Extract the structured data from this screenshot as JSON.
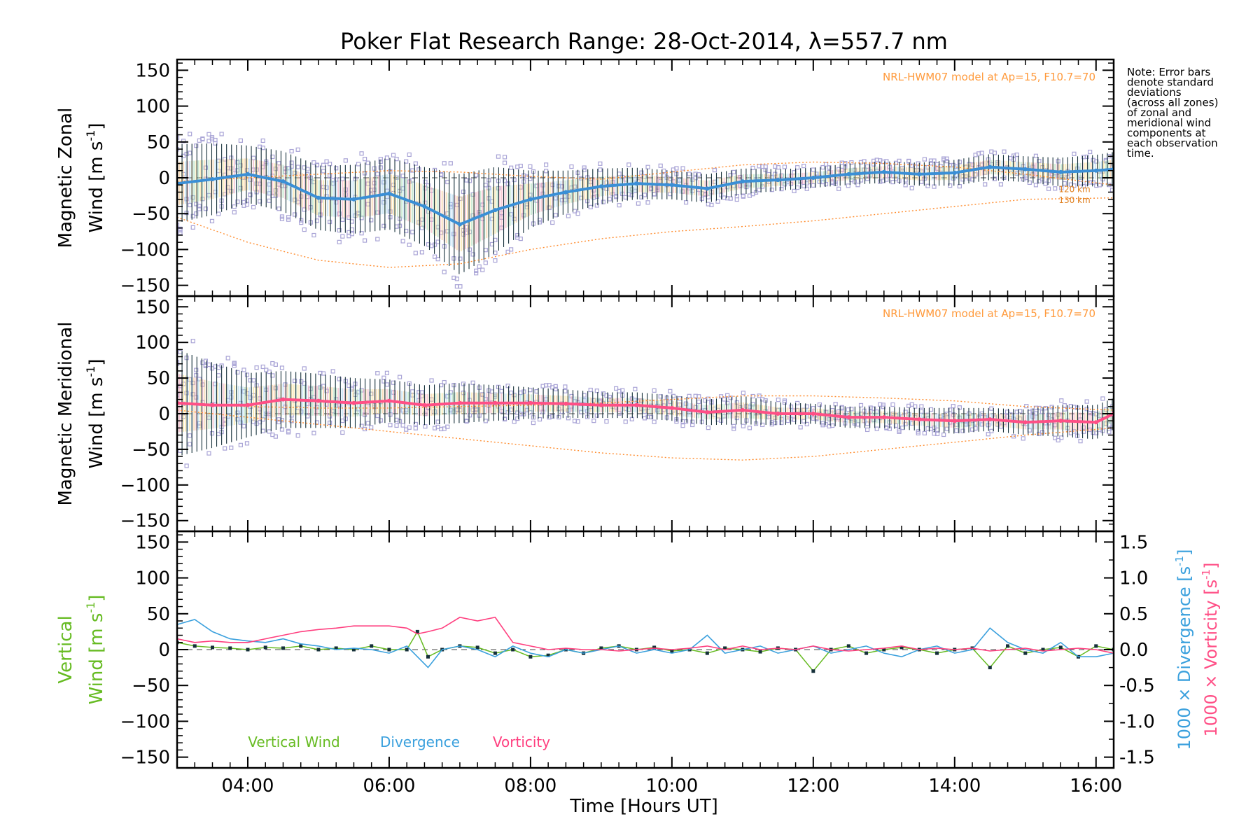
{
  "chart_data": {
    "type": "line",
    "title": "Poker Flat Research Range: 28-Oct-2014, λ=557.7 nm",
    "xlabel": "Time [Hours UT]",
    "xlim": [
      3.0,
      16.25
    ],
    "xticks": [
      "04:00",
      "06:00",
      "08:00",
      "10:00",
      "12:00",
      "14:00",
      "16:00"
    ],
    "xtick_values": [
      4,
      6,
      8,
      10,
      12,
      14,
      16
    ],
    "note": [
      "Note: Error bars",
      "denote standard",
      "deviations",
      "(across all zones)",
      "of zonal and",
      "meridional wind",
      "components at",
      "each observation",
      "time."
    ],
    "panels": [
      {
        "name": "zonal",
        "ylabel_line1": "Magnetic Zonal",
        "ylabel_line2": "Wind [m s",
        "ylabel_sup": "-1",
        "ylabel_end": "]",
        "ylim": [
          -165,
          165
        ],
        "yticks": [
          -150,
          -100,
          -50,
          0,
          50,
          100,
          150
        ],
        "model_label": "NRL-HWM07 model at Ap=15, F10.7=70",
        "km_labels": [
          "120 km",
          "130 km"
        ],
        "mean_color": "#3a8fd6",
        "mean_x": [
          3.0,
          3.5,
          4.0,
          4.5,
          5.0,
          5.5,
          6.0,
          6.5,
          7.0,
          7.5,
          8.0,
          8.5,
          9.0,
          9.5,
          10.0,
          10.5,
          11.0,
          11.5,
          12.0,
          12.5,
          13.0,
          13.5,
          14.0,
          14.5,
          15.0,
          15.5,
          16.0,
          16.25
        ],
        "mean_y": [
          -8,
          -2,
          5,
          -5,
          -28,
          -30,
          -22,
          -40,
          -65,
          -45,
          -30,
          -20,
          -12,
          -8,
          -10,
          -15,
          -5,
          -3,
          0,
          5,
          8,
          5,
          7,
          15,
          12,
          8,
          10,
          12
        ],
        "std": [
          55,
          50,
          40,
          42,
          45,
          48,
          50,
          55,
          70,
          60,
          40,
          30,
          25,
          22,
          20,
          20,
          18,
          15,
          14,
          15,
          15,
          16,
          18,
          18,
          18,
          20,
          22,
          24
        ],
        "model_x": [
          3.0,
          4.0,
          5.0,
          6.0,
          7.0,
          8.0,
          9.0,
          10.0,
          11.0,
          12.0,
          13.0,
          14.0,
          15.0,
          16.25
        ],
        "model_upper": [
          -5,
          0,
          5,
          10,
          8,
          2,
          -2,
          8,
          18,
          22,
          20,
          15,
          5,
          -10
        ],
        "model_lower": [
          -55,
          -90,
          -115,
          -125,
          -120,
          -100,
          -85,
          -75,
          -68,
          -60,
          -50,
          -40,
          -30,
          -28
        ]
      },
      {
        "name": "meridional",
        "ylabel_line1": "Magnetic Meridional",
        "ylabel_line2": "Wind [m s",
        "ylabel_sup": "-1",
        "ylabel_end": "]",
        "ylim": [
          -165,
          165
        ],
        "yticks": [
          -150,
          -100,
          -50,
          0,
          50,
          100,
          150
        ],
        "model_label": "NRL-HWM07 model at Ap=15, F10.7=70",
        "mean_color": "#ff4f86",
        "mean_x": [
          3.0,
          3.5,
          4.0,
          4.5,
          5.0,
          5.5,
          6.0,
          6.5,
          7.0,
          7.5,
          8.0,
          8.5,
          9.0,
          9.5,
          10.0,
          10.5,
          11.0,
          11.5,
          12.0,
          12.5,
          13.0,
          13.5,
          14.0,
          14.5,
          15.0,
          15.5,
          16.0,
          16.25
        ],
        "mean_y": [
          15,
          12,
          12,
          20,
          18,
          15,
          18,
          12,
          15,
          15,
          15,
          14,
          12,
          12,
          8,
          2,
          5,
          0,
          0,
          -5,
          -5,
          -8,
          -10,
          -8,
          -12,
          -10,
          -12,
          0
        ],
        "std": [
          75,
          60,
          45,
          40,
          38,
          35,
          30,
          28,
          28,
          25,
          22,
          20,
          18,
          18,
          18,
          18,
          20,
          16,
          14,
          15,
          15,
          16,
          18,
          16,
          18,
          22,
          24,
          22
        ],
        "model_x": [
          3.0,
          4.0,
          5.0,
          6.0,
          7.0,
          8.0,
          9.0,
          10.0,
          11.0,
          12.0,
          13.0,
          14.0,
          15.0,
          16.25
        ],
        "model_upper": [
          15,
          10,
          8,
          8,
          10,
          12,
          15,
          20,
          25,
          25,
          22,
          18,
          10,
          5
        ],
        "model_lower": [
          5,
          -5,
          -15,
          -25,
          -35,
          -45,
          -55,
          -62,
          -65,
          -60,
          -50,
          -40,
          -30,
          -20
        ]
      },
      {
        "name": "vertical",
        "ylabel_line1": "Vertical",
        "ylabel_line2": "Wind [m s",
        "ylabel_sup": "-1",
        "ylabel_end": "]",
        "ylim": [
          -165,
          165
        ],
        "yticks": [
          -150,
          -100,
          -50,
          0,
          50,
          100,
          150
        ],
        "right_ylim": [
          -1.65,
          1.65
        ],
        "right_yticks": [
          "1.5",
          "1.0",
          "0.5",
          "0.0",
          "-0.5",
          "-1.0",
          "-1.5"
        ],
        "right_ytick_values": [
          1.5,
          1.0,
          0.5,
          0.0,
          -0.5,
          -1.0,
          -1.5
        ],
        "right_label_div": "1000 × Divergence [s",
        "right_label_vort": "1000 × Vorticity [s",
        "right_label_sup": "-1",
        "right_label_end": "]",
        "legend": [
          "Vertical Wind",
          "Divergence",
          "Vorticity"
        ],
        "series": [
          {
            "name": "Vertical Wind",
            "color": "#66bb22",
            "x": [
              3.0,
              3.25,
              3.5,
              3.75,
              4.0,
              4.25,
              4.5,
              4.75,
              5.0,
              5.25,
              5.5,
              5.75,
              6.0,
              6.25,
              6.4,
              6.55,
              6.75,
              7.0,
              7.25,
              7.5,
              7.75,
              8.0,
              8.25,
              8.5,
              8.75,
              9.0,
              9.25,
              9.5,
              9.75,
              10.0,
              10.25,
              10.5,
              10.75,
              11.0,
              11.25,
              11.5,
              11.75,
              12.0,
              12.25,
              12.5,
              12.75,
              13.0,
              13.25,
              13.5,
              13.75,
              14.0,
              14.25,
              14.5,
              14.75,
              15.0,
              15.25,
              15.5,
              15.75,
              16.0,
              16.25
            ],
            "y": [
              10,
              5,
              3,
              2,
              0,
              3,
              2,
              5,
              0,
              2,
              0,
              5,
              0,
              0,
              25,
              -10,
              0,
              5,
              3,
              -5,
              0,
              -10,
              -8,
              0,
              -5,
              2,
              5,
              0,
              3,
              -2,
              0,
              -5,
              2,
              0,
              -3,
              2,
              0,
              -30,
              0,
              5,
              -5,
              0,
              3,
              0,
              -5,
              0,
              2,
              -25,
              5,
              -5,
              0,
              3,
              -10,
              5,
              0
            ]
          },
          {
            "name": "Divergence",
            "color": "#3aa0dd",
            "x": [
              3.0,
              3.25,
              3.5,
              3.75,
              4.0,
              4.25,
              4.5,
              4.75,
              5.0,
              5.25,
              5.5,
              5.75,
              6.0,
              6.25,
              6.4,
              6.55,
              6.75,
              7.0,
              7.25,
              7.5,
              7.75,
              8.0,
              8.25,
              8.5,
              8.75,
              9.0,
              9.25,
              9.5,
              9.75,
              10.0,
              10.25,
              10.5,
              10.75,
              11.0,
              11.25,
              11.5,
              11.75,
              12.0,
              12.25,
              12.5,
              12.75,
              13.0,
              13.25,
              13.5,
              13.75,
              14.0,
              14.25,
              14.5,
              14.75,
              15.0,
              15.25,
              15.5,
              15.75,
              16.0,
              16.25
            ],
            "y": [
              0.35,
              0.42,
              0.25,
              0.15,
              0.12,
              0.1,
              0.15,
              0.08,
              0.05,
              0.0,
              0.02,
              0.0,
              -0.05,
              0.05,
              -0.1,
              -0.25,
              0.0,
              0.05,
              0.0,
              -0.1,
              0.05,
              -0.05,
              -0.1,
              0.0,
              -0.05,
              0.0,
              0.05,
              -0.05,
              0.0,
              -0.05,
              0.0,
              0.2,
              -0.05,
              0.0,
              0.05,
              -0.05,
              0.0,
              0.05,
              -0.05,
              0.0,
              0.05,
              -0.05,
              -0.1,
              0.0,
              0.05,
              -0.05,
              0.0,
              0.3,
              0.1,
              0.0,
              -0.05,
              0.1,
              -0.1,
              -0.1,
              -0.05
            ]
          },
          {
            "name": "Vorticity",
            "color": "#ff3f7f",
            "x": [
              3.0,
              3.25,
              3.5,
              3.75,
              4.0,
              4.25,
              4.5,
              4.75,
              5.0,
              5.25,
              5.5,
              5.75,
              6.0,
              6.25,
              6.4,
              6.55,
              6.75,
              7.0,
              7.25,
              7.5,
              7.75,
              8.0,
              8.25,
              8.5,
              8.75,
              9.0,
              9.25,
              9.5,
              9.75,
              10.0,
              10.25,
              10.5,
              10.75,
              11.0,
              11.25,
              11.5,
              11.75,
              12.0,
              12.25,
              12.5,
              12.75,
              13.0,
              13.25,
              13.5,
              13.75,
              14.0,
              14.25,
              14.5,
              14.75,
              15.0,
              15.25,
              15.5,
              15.75,
              16.0,
              16.25
            ],
            "y": [
              0.15,
              0.1,
              0.12,
              0.1,
              0.1,
              0.15,
              0.2,
              0.25,
              0.28,
              0.3,
              0.33,
              0.33,
              0.33,
              0.3,
              0.22,
              0.25,
              0.3,
              0.45,
              0.4,
              0.45,
              0.1,
              0.05,
              0.0,
              0.02,
              0.0,
              0.0,
              -0.02,
              0.0,
              0.02,
              0.0,
              0.02,
              0.05,
              0.0,
              0.05,
              0.0,
              0.02,
              0.0,
              0.05,
              0.0,
              -0.02,
              0.0,
              0.02,
              0.05,
              0.0,
              0.02,
              0.0,
              0.02,
              -0.02,
              0.0,
              0.02,
              -0.02,
              0.0,
              0.02,
              0.0,
              -0.05
            ]
          }
        ]
      }
    ],
    "colors": {
      "observation_squares": "#a9a4d6",
      "error_bar": "#16303a",
      "model_line": "#ff8c2e",
      "zonal_mean": "#3a8fd6",
      "meridional_mean": "#ff4f86",
      "vertical_dots": "#16303a"
    }
  }
}
